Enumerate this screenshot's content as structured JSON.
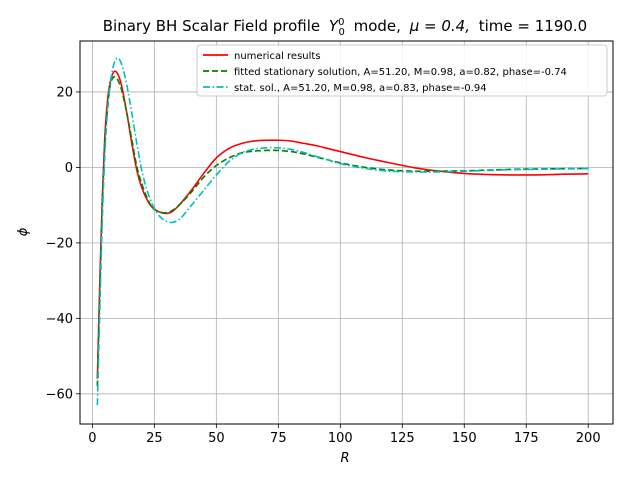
{
  "chart_data": {
    "type": "line",
    "title": "Binary BH Scalar Field profile",
    "title_math": "Y",
    "title_math_sup": "0",
    "title_math_sub": "0",
    "title_mode": "mode,",
    "title_mu": "μ = 0.4,",
    "title_time": "time = 1190.0",
    "xlabel": "R",
    "ylabel": "ϕ",
    "xlim": [
      -5,
      210
    ],
    "ylim": [
      -68,
      33.5
    ],
    "xticks": [
      0,
      25,
      50,
      75,
      100,
      125,
      150,
      175,
      200
    ],
    "xtick_labels": [
      "0",
      "25",
      "50",
      "75",
      "100",
      "125",
      "150",
      "175",
      "200"
    ],
    "yticks": [
      20,
      0,
      -20,
      -40,
      -60
    ],
    "ytick_labels": [
      "20",
      "0",
      "−20",
      "−40",
      "−60"
    ],
    "grid": true,
    "legend_position": "top-right",
    "series": [
      {
        "name": "numerical results",
        "color": "#ff0000",
        "style": "solid",
        "x": [
          2,
          3,
          4,
          5,
          6,
          7,
          8,
          9,
          10,
          11,
          12,
          14,
          16,
          18,
          20,
          22,
          24,
          26,
          28,
          30,
          32,
          35,
          40,
          45,
          50,
          55,
          60,
          65,
          70,
          75,
          80,
          85,
          90,
          95,
          100,
          110,
          120,
          130,
          140,
          150,
          160,
          170,
          178,
          185,
          190,
          200
        ],
        "y": [
          -56,
          -30,
          -8,
          8,
          17,
          22,
          24.5,
          25.5,
          25,
          23.5,
          21,
          14,
          6,
          -1,
          -5.5,
          -8.5,
          -10.5,
          -11.5,
          -12,
          -12.2,
          -11.8,
          -10,
          -6,
          -1.5,
          2.5,
          5,
          6.3,
          7,
          7.2,
          7.2,
          7,
          6.4,
          5.8,
          5,
          4.2,
          2.6,
          1.2,
          -0.1,
          -1,
          -1.6,
          -1.9,
          -2,
          -2,
          -1.9,
          -1.8,
          -1.7
        ]
      },
      {
        "name": "fitted stationary solution, A=51.20, M=0.98, a=0.82, phase=-0.74",
        "color": "#008000",
        "style": "dashed",
        "x": [
          2,
          3,
          4,
          5,
          6,
          7,
          8,
          9,
          10,
          11,
          12,
          14,
          16,
          18,
          20,
          22,
          24,
          26,
          28,
          30,
          32,
          35,
          40,
          45,
          50,
          55,
          60,
          65,
          70,
          75,
          80,
          85,
          90,
          95,
          100,
          110,
          120,
          130,
          140,
          150,
          160,
          170,
          180,
          190,
          200
        ],
        "y": [
          -58,
          -33,
          -10,
          6,
          15,
          21,
          23.5,
          24,
          23.5,
          22,
          20,
          14,
          7,
          0,
          -4.5,
          -8,
          -10.5,
          -11.5,
          -12,
          -12,
          -11.5,
          -10,
          -6.5,
          -2.5,
          0.5,
          2.5,
          3.8,
          4.3,
          4.5,
          4.5,
          4.2,
          3.6,
          2.8,
          2,
          1.2,
          0,
          -0.7,
          -1,
          -1,
          -0.9,
          -0.7,
          -0.5,
          -0.4,
          -0.35,
          -0.3
        ]
      },
      {
        "name": "stat. sol., A=51.20, M=0.98, a=0.83, phase=-0.94",
        "color": "#00bfbf",
        "style": "dashdot",
        "x": [
          2,
          3,
          4,
          5,
          6,
          7,
          8,
          9,
          10,
          11,
          12,
          13,
          14,
          16,
          18,
          20,
          22,
          24,
          26,
          28,
          30,
          32,
          34,
          36,
          40,
          45,
          50,
          55,
          60,
          65,
          70,
          75,
          80,
          85,
          90,
          95,
          100,
          110,
          120,
          130,
          140,
          150,
          160,
          170,
          180,
          190,
          200
        ],
        "y": [
          -63,
          -38,
          -14,
          3,
          14,
          21,
          25.5,
          28,
          29,
          28.5,
          27,
          24.5,
          21.5,
          14,
          6,
          -1,
          -6,
          -9.5,
          -12,
          -13.5,
          -14.3,
          -14.6,
          -14.2,
          -13.2,
          -10,
          -6,
          -2,
          1.5,
          3.8,
          4.8,
          5.2,
          5.2,
          4.8,
          4,
          3,
          2,
          1,
          -0.3,
          -1,
          -1.2,
          -1.2,
          -1,
          -0.8,
          -0.6,
          -0.5,
          -0.4,
          -0.3
        ]
      }
    ]
  }
}
